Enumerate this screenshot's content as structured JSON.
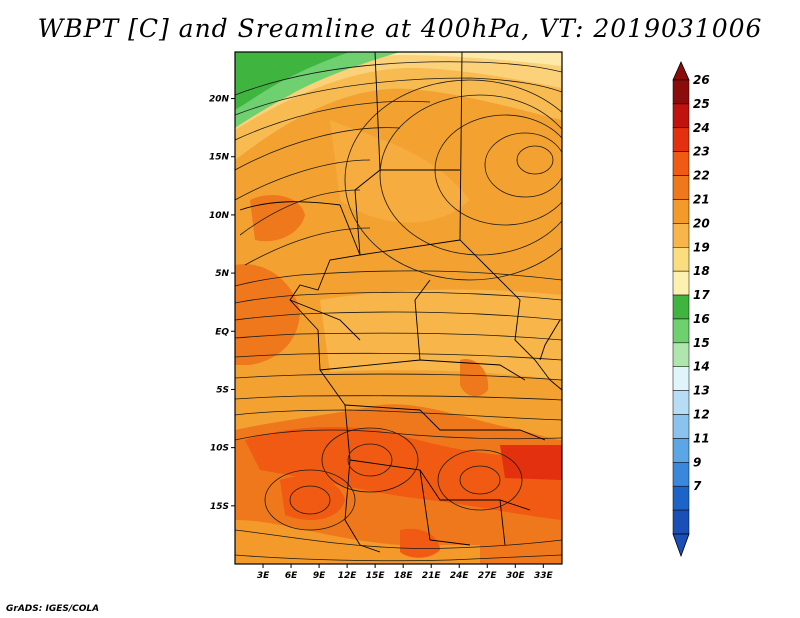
{
  "title": "WBPT [C] and Sreamline at 400hPa, VT: 2019031006",
  "footer": "GrADS: IGES/COLA",
  "map": {
    "lon_range": [
      0,
      35
    ],
    "lat_range": [
      -20,
      24
    ],
    "lon_ticks": [
      "3E",
      "6E",
      "9E",
      "12E",
      "15E",
      "18E",
      "21E",
      "24E",
      "27E",
      "30E",
      "33E"
    ],
    "lon_tick_values": [
      3,
      6,
      9,
      12,
      15,
      18,
      21,
      24,
      27,
      30,
      33
    ],
    "lat_ticks": [
      "20N",
      "15N",
      "10N",
      "5N",
      "EQ",
      "5S",
      "10S",
      "15S"
    ],
    "lat_tick_values": [
      20,
      15,
      10,
      5,
      0,
      -5,
      -10,
      -15
    ]
  },
  "colorbar": {
    "labels": [
      "26",
      "25",
      "24",
      "23",
      "22",
      "21",
      "20",
      "19",
      "18",
      "17",
      "16",
      "15",
      "14",
      "13",
      "12",
      "11",
      "9",
      "7"
    ],
    "colors": [
      "#8c0c0c",
      "#c0120f",
      "#e3300e",
      "#f05a12",
      "#f0781c",
      "#f39a2b",
      "#f7b54a",
      "#fbdc7e",
      "#fdf1b2",
      "#3fb53f",
      "#6fd06f",
      "#aee6ae",
      "#e0f4fb",
      "#b7dcf5",
      "#8cc3ee",
      "#5da6e6",
      "#3a88dc",
      "#1e64c8",
      "#1a4fb8"
    ],
    "top_arrow_color": "#8c0c0c",
    "bottom_arrow_color": "#1a4fb8"
  }
}
